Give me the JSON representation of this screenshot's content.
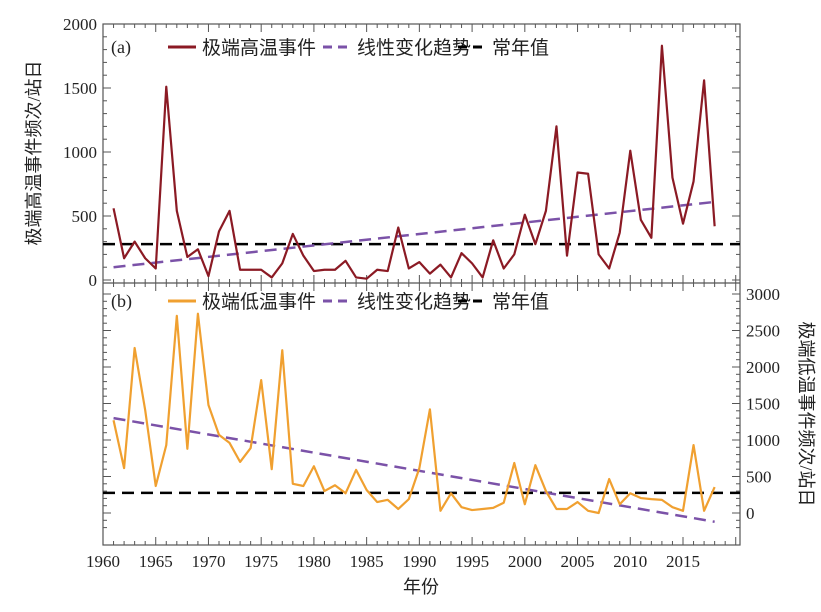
{
  "chart_data": [
    {
      "type": "line",
      "panel_label": "(a)",
      "ylabel": "极端高温事件频次/站日",
      "xlabel": "年份",
      "y_axis_side": "left",
      "xlim": [
        1960,
        2020
      ],
      "ylim": [
        0,
        2000
      ],
      "xticks": [
        "1960",
        "1965",
        "1970",
        "1975",
        "1980",
        "1985",
        "1990",
        "1995",
        "2000",
        "2005",
        "2010",
        "2015"
      ],
      "yticks": [
        "0",
        "500",
        "1000",
        "1500",
        "2000"
      ],
      "legend": {
        "placement": "top",
        "entries": [
          "极端高温事件",
          "线性变化趋势",
          "常年值"
        ]
      },
      "x": [
        1961,
        1962,
        1963,
        1964,
        1965,
        1966,
        1967,
        1968,
        1969,
        1970,
        1971,
        1972,
        1973,
        1974,
        1975,
        1976,
        1977,
        1978,
        1979,
        1980,
        1981,
        1982,
        1983,
        1984,
        1985,
        1986,
        1987,
        1988,
        1989,
        1990,
        1991,
        1992,
        1993,
        1994,
        1995,
        1996,
        1997,
        1998,
        1999,
        2000,
        2001,
        2002,
        2003,
        2004,
        2005,
        2006,
        2007,
        2008,
        2009,
        2010,
        2011,
        2012,
        2013,
        2014,
        2015,
        2016,
        2017,
        2018
      ],
      "series": [
        {
          "name": "极端高温事件",
          "color": "#8b1a24",
          "style": "solid",
          "values": [
            560,
            170,
            300,
            170,
            90,
            1510,
            540,
            180,
            240,
            30,
            380,
            540,
            80,
            80,
            80,
            20,
            130,
            360,
            190,
            70,
            80,
            80,
            150,
            20,
            10,
            80,
            70,
            410,
            90,
            140,
            50,
            120,
            20,
            210,
            130,
            20,
            310,
            90,
            200,
            510,
            280,
            540,
            1200,
            190,
            840,
            830,
            200,
            90,
            370,
            1010,
            470,
            330,
            1830,
            800,
            440,
            770,
            1560,
            420
          ]
        },
        {
          "name": "线性变化趋势",
          "color": "#7b52a8",
          "style": "dashed",
          "values_endpoints": [
            100,
            610
          ]
        },
        {
          "name": "常年值",
          "color": "#000000",
          "style": "dashed",
          "value": 280
        }
      ]
    },
    {
      "type": "line",
      "panel_label": "(b)",
      "ylabel": "极端低温事件频次/站日",
      "y_axis_side": "right",
      "xlim": [
        1960,
        2020
      ],
      "ylim": [
        -300,
        3000
      ],
      "yticks": [
        "0",
        "500",
        "1000",
        "1500",
        "2000",
        "2500",
        "3000"
      ],
      "legend": {
        "placement": "top",
        "entries": [
          "极端低温事件",
          "线性变化趋势",
          "常年值"
        ]
      },
      "series": [
        {
          "name": "极端低温事件",
          "color": "#f0a030",
          "style": "solid",
          "values": [
            1270,
            615,
            2260,
            1410,
            370,
            930,
            2700,
            880,
            2730,
            1480,
            1070,
            960,
            700,
            890,
            1820,
            600,
            2230,
            400,
            370,
            640,
            300,
            380,
            270,
            590,
            315,
            150,
            180,
            55,
            190,
            615,
            1420,
            30,
            270,
            80,
            40,
            55,
            70,
            140,
            685,
            120,
            655,
            300,
            55,
            55,
            150,
            30,
            0,
            465,
            120,
            270,
            205,
            190,
            180,
            80,
            30,
            930,
            30,
            355
          ]
        },
        {
          "name": "线性变化趋势",
          "color": "#7b52a8",
          "style": "dashed",
          "values_endpoints": [
            1300,
            -120
          ]
        },
        {
          "name": "常年值",
          "color": "#000000",
          "style": "dashed",
          "value": 275
        }
      ]
    }
  ]
}
